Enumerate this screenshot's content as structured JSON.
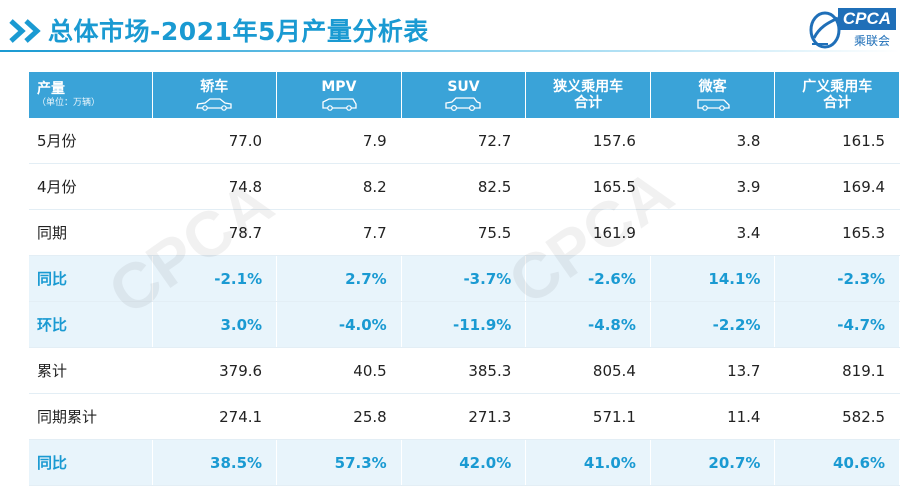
{
  "header": {
    "title": "总体市场-2021年5月产量分析表",
    "logo_text": "CPCA",
    "logo_sub": "乘联会"
  },
  "watermark": "CPCA",
  "table": {
    "corner": {
      "label": "产量",
      "unit": "（单位：万辆）"
    },
    "columns": [
      {
        "label": "轿车",
        "icon": "sedan-icon"
      },
      {
        "label": "MPV",
        "icon": "mpv-icon"
      },
      {
        "label": "SUV",
        "icon": "suv-icon"
      },
      {
        "label": "狭义乘用车合计",
        "line1": "狭义乘用车",
        "line2": "合计"
      },
      {
        "label": "微客",
        "icon": "minivan-icon"
      },
      {
        "label": "广义乘用车合计",
        "line1": "广义乘用车",
        "line2": "合计"
      }
    ],
    "rows": [
      {
        "label": "5月份",
        "values": [
          "77.0",
          "7.9",
          "72.7",
          "157.6",
          "3.8",
          "161.5"
        ],
        "type": "normal"
      },
      {
        "label": "4月份",
        "values": [
          "74.8",
          "8.2",
          "82.5",
          "165.5",
          "3.9",
          "169.4"
        ],
        "type": "normal"
      },
      {
        "label": "同期",
        "values": [
          "78.7",
          "7.7",
          "75.5",
          "161.9",
          "3.4",
          "165.3"
        ],
        "type": "normal"
      },
      {
        "label": "同比",
        "values": [
          "-2.1%",
          "2.7%",
          "-3.7%",
          "-2.6%",
          "14.1%",
          "-2.3%"
        ],
        "type": "pct"
      },
      {
        "label": "环比",
        "values": [
          "3.0%",
          "-4.0%",
          "-11.9%",
          "-4.8%",
          "-2.2%",
          "-4.7%"
        ],
        "type": "pct"
      },
      {
        "label": "累计",
        "values": [
          "379.6",
          "40.5",
          "385.3",
          "805.4",
          "13.7",
          "819.1"
        ],
        "type": "normal"
      },
      {
        "label": "同期累计",
        "values": [
          "274.1",
          "25.8",
          "271.3",
          "571.1",
          "11.4",
          "582.5"
        ],
        "type": "normal"
      },
      {
        "label": "同比",
        "values": [
          "38.5%",
          "57.3%",
          "42.0%",
          "41.0%",
          "20.7%",
          "40.6%"
        ],
        "type": "pct"
      }
    ]
  },
  "colors": {
    "accent": "#1a9ad2",
    "header_bg": "#3aa3d8",
    "pct_row_bg": "#e8f4fb"
  }
}
